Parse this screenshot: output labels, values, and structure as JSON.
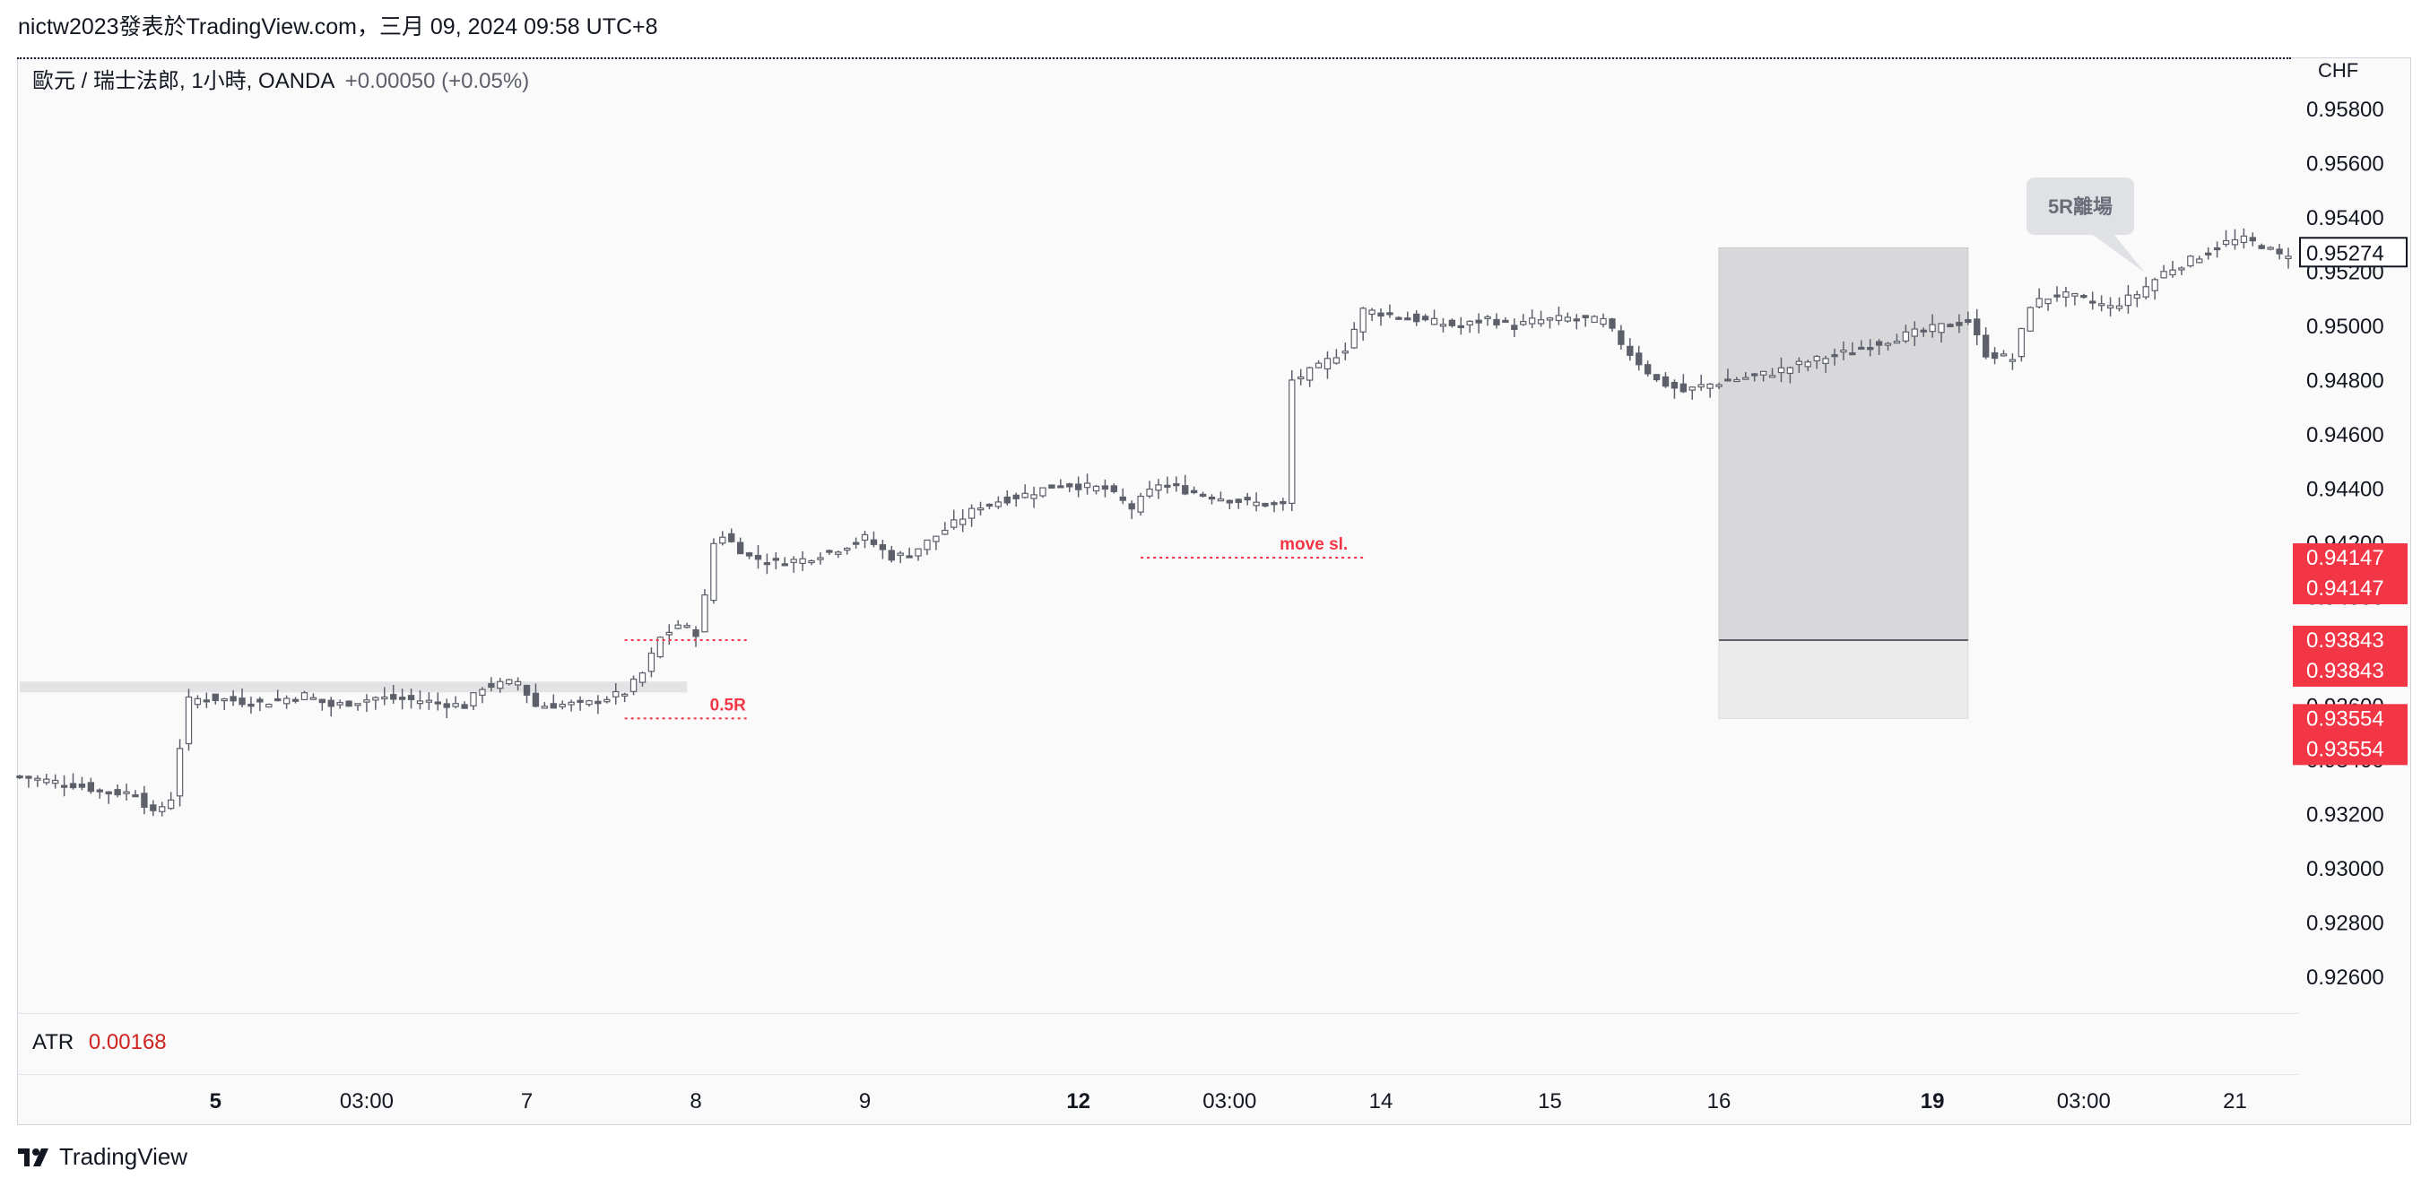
{
  "header": "nictw2023發表於TradingView.com，三月 09, 2024 09:58 UTC+8",
  "legend": {
    "symbol": "歐元 / 瑞士法郎, 1小時, OANDA",
    "change": "+0.00050 (+0.05%)"
  },
  "atr": {
    "label": "ATR",
    "value": "0.00168"
  },
  "footer": {
    "brand": "TradingView"
  },
  "colors": {
    "candle": "#5d606b",
    "red": "#f23645",
    "box": "#d8d8da"
  },
  "chart_data": {
    "type": "candlestick",
    "currency": "CHF",
    "ylim": [
      0.925,
      0.959
    ],
    "y_ticks": [
      "0.95800",
      "0.95600",
      "0.95400",
      "0.95200",
      "0.95000",
      "0.94800",
      "0.94600",
      "0.94400",
      "0.94200",
      "0.94000",
      "0.93800",
      "0.93600",
      "0.93400",
      "0.93200",
      "0.93000",
      "0.92800",
      "0.92600"
    ],
    "x_ticks": [
      {
        "label": "5",
        "bold": true,
        "i": 22
      },
      {
        "label": "03:00",
        "i": 39
      },
      {
        "label": "7",
        "i": 57
      },
      {
        "label": "8",
        "i": 76
      },
      {
        "label": "9",
        "i": 95
      },
      {
        "label": "12",
        "bold": true,
        "i": 119
      },
      {
        "label": "03:00",
        "i": 136
      },
      {
        "label": "14",
        "i": 153
      },
      {
        "label": "15",
        "i": 172
      },
      {
        "label": "16",
        "i": 191
      },
      {
        "label": "19",
        "bold": true,
        "i": 215
      },
      {
        "label": "03:00",
        "i": 232
      },
      {
        "label": "21",
        "i": 249
      }
    ],
    "close_path": [
      [
        0,
        0.9334
      ],
      [
        6,
        0.9331
      ],
      [
        10,
        0.9328
      ],
      [
        13,
        0.9328
      ],
      [
        15,
        0.932
      ],
      [
        17,
        0.9326
      ],
      [
        18,
        0.9345
      ],
      [
        19,
        0.9362
      ],
      [
        21,
        0.9363
      ],
      [
        27,
        0.9361
      ],
      [
        32,
        0.9364
      ],
      [
        35,
        0.936
      ],
      [
        40,
        0.9363
      ],
      [
        45,
        0.9362
      ],
      [
        50,
        0.936
      ],
      [
        52,
        0.9367
      ],
      [
        56,
        0.9369
      ],
      [
        58,
        0.936
      ],
      [
        64,
        0.9361
      ],
      [
        68,
        0.9365
      ],
      [
        70,
        0.9372
      ],
      [
        72,
        0.9385
      ],
      [
        74,
        0.939
      ],
      [
        76,
        0.9387
      ],
      [
        77,
        0.94
      ],
      [
        78,
        0.942
      ],
      [
        79,
        0.9423
      ],
      [
        82,
        0.9415
      ],
      [
        85,
        0.9413
      ],
      [
        88,
        0.9414
      ],
      [
        92,
        0.9418
      ],
      [
        95,
        0.9422
      ],
      [
        98,
        0.9415
      ],
      [
        100,
        0.9416
      ],
      [
        104,
        0.9425
      ],
      [
        108,
        0.9434
      ],
      [
        113,
        0.9438
      ],
      [
        117,
        0.9442
      ],
      [
        122,
        0.944
      ],
      [
        125,
        0.9433
      ],
      [
        128,
        0.9442
      ],
      [
        133,
        0.9438
      ],
      [
        138,
        0.9435
      ],
      [
        142,
        0.9434
      ],
      [
        143,
        0.948
      ],
      [
        146,
        0.9485
      ],
      [
        149,
        0.9492
      ],
      [
        151,
        0.9506
      ],
      [
        153,
        0.9505
      ],
      [
        158,
        0.9502
      ],
      [
        162,
        0.95
      ],
      [
        165,
        0.9503
      ],
      [
        168,
        0.95
      ],
      [
        170,
        0.9502
      ],
      [
        174,
        0.9503
      ],
      [
        178,
        0.9502
      ],
      [
        181,
        0.949
      ],
      [
        184,
        0.948
      ],
      [
        187,
        0.9476
      ],
      [
        189,
        0.9478
      ],
      [
        192,
        0.948
      ],
      [
        197,
        0.9483
      ],
      [
        201,
        0.9487
      ],
      [
        206,
        0.9491
      ],
      [
        211,
        0.9496
      ],
      [
        216,
        0.95
      ],
      [
        219,
        0.9502
      ],
      [
        221,
        0.949
      ],
      [
        224,
        0.9488
      ],
      [
        226,
        0.9508
      ],
      [
        229,
        0.9512
      ],
      [
        232,
        0.951
      ],
      [
        235,
        0.9507
      ],
      [
        238,
        0.9512
      ],
      [
        241,
        0.952
      ],
      [
        245,
        0.9526
      ],
      [
        248,
        0.9531
      ],
      [
        250,
        0.9532
      ],
      [
        252,
        0.953
      ],
      [
        254,
        0.9526
      ],
      [
        255,
        0.9527
      ]
    ],
    "last_price": "0.95274",
    "price_labels": [
      {
        "value": 0.94147,
        "text": "0.94147"
      },
      {
        "value": 0.93843,
        "text": "0.93843"
      },
      {
        "value": 0.93554,
        "text": "0.93554"
      }
    ],
    "annotations": {
      "exit_label": "5R離場",
      "move_sl": "move sl.",
      "half_r": "0.5R"
    },
    "position_box": {
      "i_start": 191,
      "i_end": 219,
      "top": 0.9529,
      "entry": 0.93843,
      "stop": 0.93554
    },
    "zone": {
      "i_start": 0,
      "i_end": 75,
      "top": 0.9369,
      "bottom": 0.9365
    },
    "half_r_line": {
      "i_start": 68,
      "i_end": 82,
      "value": 0.93554
    },
    "entry_line": {
      "i_start": 68,
      "i_end": 82,
      "value": 0.93843
    },
    "move_sl_line": {
      "i_start": 126,
      "i_end": 151,
      "value": 0.94147
    }
  }
}
